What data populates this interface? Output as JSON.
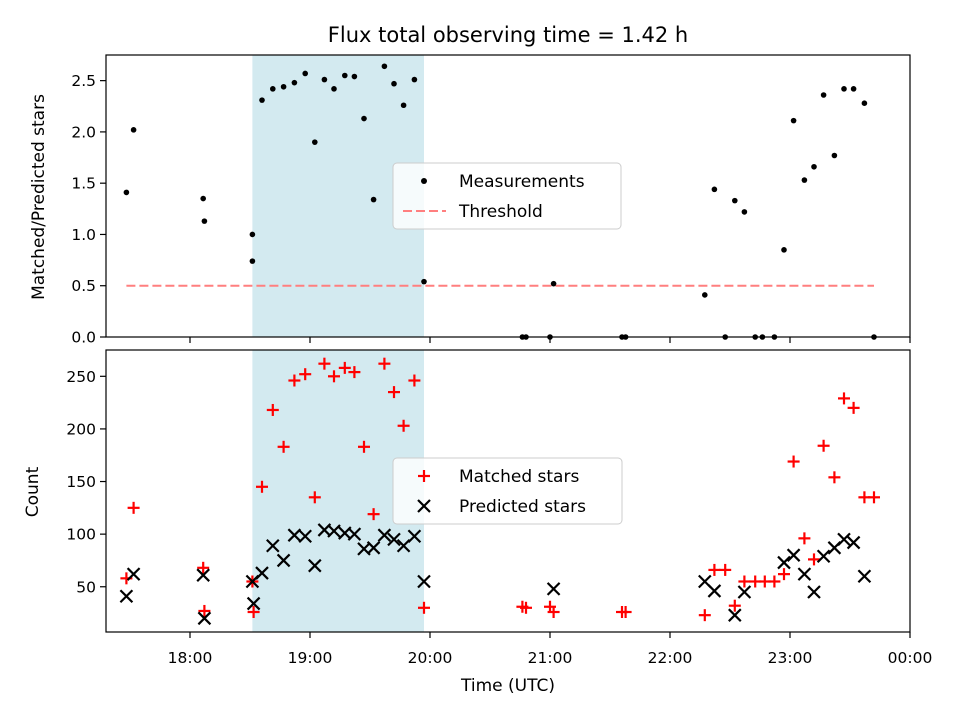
{
  "chart_data": {
    "title": "Flux total observing time = 1.42 h",
    "x_axis": {
      "label": "Time (UTC)",
      "range_hours": [
        17.3,
        24.0
      ],
      "ticks": [
        {
          "h": 18,
          "label": "18:00"
        },
        {
          "h": 19,
          "label": "19:00"
        },
        {
          "h": 20,
          "label": "20:00"
        },
        {
          "h": 21,
          "label": "21:00"
        },
        {
          "h": 22,
          "label": "22:00"
        },
        {
          "h": 23,
          "label": "23:00"
        },
        {
          "h": 24,
          "label": "00:00"
        }
      ]
    },
    "shaded_interval_hours": [
      18.52,
      19.95
    ],
    "shade_color": "#d3eaf0",
    "charts": [
      {
        "type": "scatter",
        "ylabel": "Matched/Predicted stars",
        "ylim": [
          0,
          2.75
        ],
        "yticks": [
          {
            "v": 0.0,
            "label": "0.0"
          },
          {
            "v": 0.5,
            "label": "0.5"
          },
          {
            "v": 1.0,
            "label": "1.0"
          },
          {
            "v": 1.5,
            "label": "1.5"
          },
          {
            "v": 2.0,
            "label": "2.0"
          },
          {
            "v": 2.5,
            "label": "2.5"
          }
        ],
        "legend": [
          {
            "label": "Measurements",
            "kind": "dot",
            "color": "#000000"
          },
          {
            "label": "Threshold",
            "kind": "dashed-line",
            "color": "#ff7f7f"
          }
        ],
        "threshold": {
          "value": 0.5,
          "x_range": [
            17.47,
            23.7
          ],
          "color": "#ff7f7f"
        },
        "series": [
          {
            "name": "Measurements",
            "color": "#000000",
            "points": [
              [
                17.47,
                1.41
              ],
              [
                17.53,
                2.02
              ],
              [
                18.11,
                1.35
              ],
              [
                18.12,
                1.13
              ],
              [
                18.52,
                1.0
              ],
              [
                18.52,
                0.74
              ],
              [
                18.6,
                2.31
              ],
              [
                18.69,
                2.42
              ],
              [
                18.78,
                2.44
              ],
              [
                18.87,
                2.48
              ],
              [
                18.96,
                2.57
              ],
              [
                19.04,
                1.9
              ],
              [
                19.12,
                2.51
              ],
              [
                19.2,
                2.42
              ],
              [
                19.29,
                2.55
              ],
              [
                19.37,
                2.54
              ],
              [
                19.45,
                2.13
              ],
              [
                19.53,
                1.34
              ],
              [
                19.62,
                2.64
              ],
              [
                19.7,
                2.47
              ],
              [
                19.78,
                2.26
              ],
              [
                19.87,
                2.51
              ],
              [
                19.95,
                0.54
              ],
              [
                20.77,
                0.0
              ],
              [
                20.8,
                0.0
              ],
              [
                21.0,
                0.0
              ],
              [
                21.03,
                0.52
              ],
              [
                21.6,
                0.0
              ],
              [
                21.63,
                0.0
              ],
              [
                22.29,
                0.41
              ],
              [
                22.37,
                1.44
              ],
              [
                22.46,
                0.0
              ],
              [
                22.54,
                1.33
              ],
              [
                22.62,
                1.22
              ],
              [
                22.71,
                0.0
              ],
              [
                22.77,
                0.0
              ],
              [
                22.87,
                0.0
              ],
              [
                22.95,
                0.85
              ],
              [
                23.03,
                2.11
              ],
              [
                23.12,
                1.53
              ],
              [
                23.2,
                1.66
              ],
              [
                23.28,
                2.36
              ],
              [
                23.37,
                1.77
              ],
              [
                23.45,
                2.42
              ],
              [
                23.53,
                2.42
              ],
              [
                23.62,
                2.28
              ],
              [
                23.7,
                0.0
              ]
            ]
          }
        ]
      },
      {
        "type": "scatter",
        "ylabel": "Count",
        "ylim": [
          7,
          275
        ],
        "yticks": [
          {
            "v": 50,
            "label": "50"
          },
          {
            "v": 100,
            "label": "100"
          },
          {
            "v": 150,
            "label": "150"
          },
          {
            "v": 200,
            "label": "200"
          },
          {
            "v": 250,
            "label": "250"
          }
        ],
        "legend": [
          {
            "label": "Matched stars",
            "kind": "plus",
            "color": "#ff0000"
          },
          {
            "label": "Predicted stars",
            "kind": "x",
            "color": "#000000"
          }
        ],
        "series": [
          {
            "name": "Matched stars",
            "marker": "plus",
            "color": "#ff0000",
            "points": [
              [
                17.47,
                58
              ],
              [
                17.53,
                125
              ],
              [
                18.11,
                68
              ],
              [
                18.12,
                27
              ],
              [
                18.52,
                55
              ],
              [
                18.53,
                26
              ],
              [
                18.6,
                145
              ],
              [
                18.69,
                218
              ],
              [
                18.78,
                183
              ],
              [
                18.87,
                246
              ],
              [
                18.96,
                252
              ],
              [
                19.04,
                135
              ],
              [
                19.12,
                262
              ],
              [
                19.2,
                250
              ],
              [
                19.29,
                258
              ],
              [
                19.37,
                254
              ],
              [
                19.45,
                183
              ],
              [
                19.53,
                119
              ],
              [
                19.62,
                262
              ],
              [
                19.7,
                235
              ],
              [
                19.78,
                203
              ],
              [
                19.87,
                246
              ],
              [
                19.95,
                30
              ],
              [
                20.77,
                31
              ],
              [
                20.8,
                30
              ],
              [
                21.0,
                31
              ],
              [
                21.03,
                26
              ],
              [
                21.6,
                26
              ],
              [
                21.63,
                26
              ],
              [
                22.29,
                23
              ],
              [
                22.37,
                66
              ],
              [
                22.46,
                66
              ],
              [
                22.54,
                32
              ],
              [
                22.62,
                55
              ],
              [
                22.71,
                55
              ],
              [
                22.79,
                55
              ],
              [
                22.87,
                55
              ],
              [
                22.95,
                62
              ],
              [
                23.03,
                169
              ],
              [
                23.12,
                96
              ],
              [
                23.2,
                76
              ],
              [
                23.28,
                184
              ],
              [
                23.37,
                154
              ],
              [
                23.45,
                229
              ],
              [
                23.53,
                220
              ],
              [
                23.62,
                135
              ],
              [
                23.7,
                135
              ]
            ]
          },
          {
            "name": "Predicted stars",
            "marker": "x",
            "color": "#000000",
            "points": [
              [
                17.47,
                41
              ],
              [
                17.53,
                62
              ],
              [
                18.11,
                61
              ],
              [
                18.12,
                20
              ],
              [
                18.52,
                55
              ],
              [
                18.53,
                34
              ],
              [
                18.6,
                63
              ],
              [
                18.69,
                89
              ],
              [
                18.78,
                75
              ],
              [
                18.87,
                99
              ],
              [
                18.96,
                98
              ],
              [
                19.04,
                70
              ],
              [
                19.12,
                104
              ],
              [
                19.2,
                103
              ],
              [
                19.29,
                101
              ],
              [
                19.37,
                100
              ],
              [
                19.45,
                86
              ],
              [
                19.53,
                87
              ],
              [
                19.62,
                99
              ],
              [
                19.7,
                95
              ],
              [
                19.78,
                89
              ],
              [
                19.87,
                98
              ],
              [
                19.95,
                55
              ],
              [
                21.03,
                48
              ],
              [
                22.29,
                55
              ],
              [
                22.37,
                46
              ],
              [
                22.54,
                23
              ],
              [
                22.62,
                45
              ],
              [
                22.95,
                73
              ],
              [
                23.03,
                80
              ],
              [
                23.12,
                62
              ],
              [
                23.2,
                45
              ],
              [
                23.28,
                79
              ],
              [
                23.37,
                87
              ],
              [
                23.45,
                95
              ],
              [
                23.53,
                92
              ],
              [
                23.62,
                60
              ]
            ]
          }
        ]
      }
    ]
  }
}
